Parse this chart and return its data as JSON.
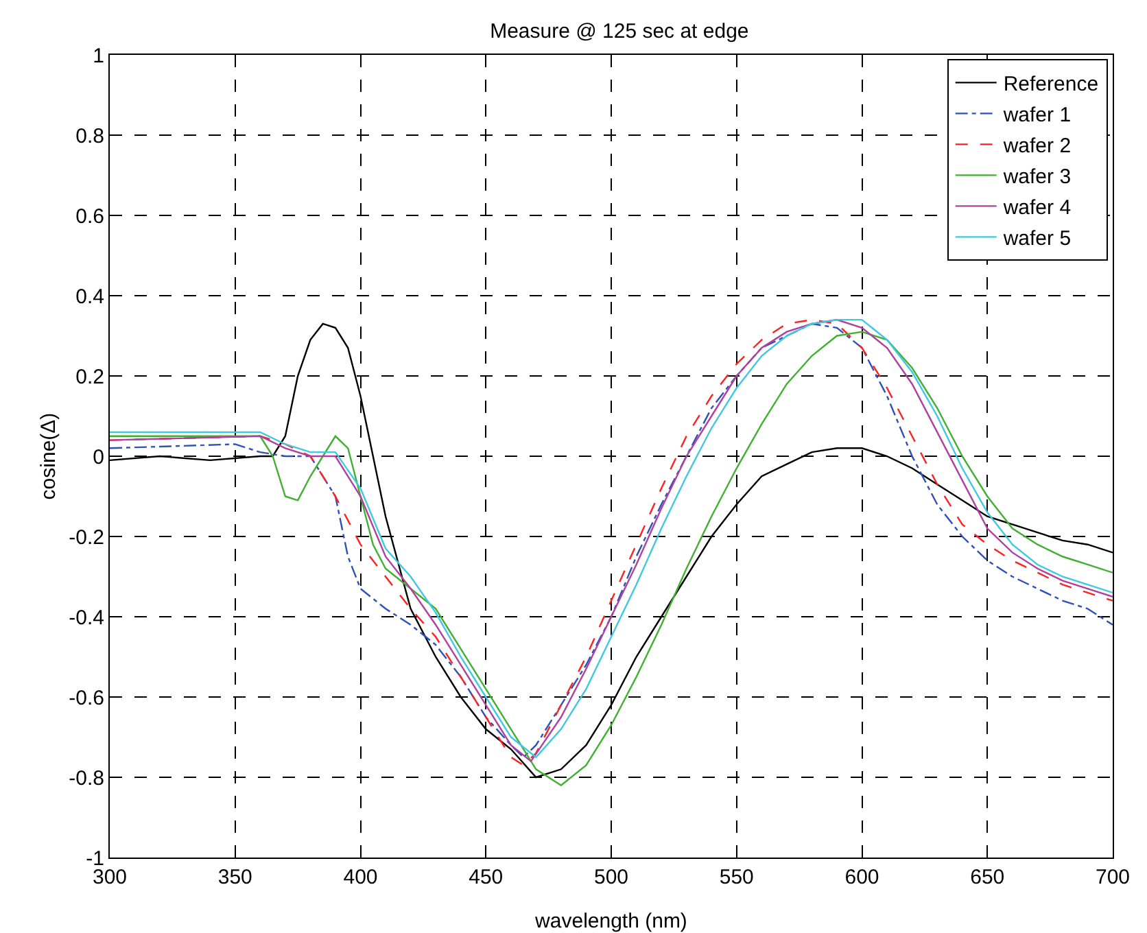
{
  "chart_data": {
    "type": "line",
    "title": "Measure @ 125 sec at edge",
    "xlabel": "wavelength (nm)",
    "ylabel": "cosine(Δ)",
    "xlim": [
      300,
      700
    ],
    "xticks": [
      300,
      350,
      400,
      450,
      500,
      550,
      600,
      650,
      700
    ],
    "ylim": [
      -1,
      1
    ],
    "yticks": [
      -1,
      -0.8,
      -0.6,
      -0.4,
      -0.2,
      0,
      0.2,
      0.4,
      0.6,
      0.8,
      1
    ],
    "grid": true,
    "legend": "top right",
    "marker": "none",
    "series": [
      {
        "name": "Reference",
        "color": "#000000",
        "line_style": "solid",
        "x": [
          300,
          320,
          340,
          360,
          365,
          370,
          375,
          380,
          385,
          390,
          395,
          400,
          405,
          410,
          420,
          430,
          440,
          450,
          460,
          470,
          480,
          490,
          500,
          510,
          520,
          530,
          540,
          550,
          560,
          570,
          580,
          590,
          600,
          610,
          620,
          630,
          640,
          650,
          660,
          670,
          680,
          690,
          700
        ],
        "values": [
          -0.01,
          0,
          -0.01,
          0,
          0,
          0.05,
          0.2,
          0.29,
          0.33,
          0.32,
          0.27,
          0.15,
          0,
          -0.15,
          -0.38,
          -0.5,
          -0.6,
          -0.68,
          -0.73,
          -0.8,
          -0.78,
          -0.72,
          -0.62,
          -0.5,
          -0.4,
          -0.3,
          -0.2,
          -0.12,
          -0.05,
          -0.02,
          0.01,
          0.02,
          0.02,
          0,
          -0.03,
          -0.07,
          -0.11,
          -0.15,
          -0.17,
          -0.19,
          -0.21,
          -0.22,
          -0.24
        ]
      },
      {
        "name": "wafer 1",
        "color": "#3050b8",
        "line_style": "dashdot",
        "x": [
          300,
          350,
          360,
          370,
          380,
          390,
          395,
          400,
          410,
          420,
          430,
          440,
          450,
          460,
          465,
          470,
          480,
          490,
          500,
          510,
          520,
          530,
          540,
          550,
          560,
          570,
          580,
          590,
          600,
          610,
          620,
          630,
          640,
          650,
          660,
          670,
          680,
          690,
          700
        ],
        "values": [
          0.02,
          0.03,
          0.01,
          0,
          0,
          -0.1,
          -0.25,
          -0.33,
          -0.38,
          -0.42,
          -0.47,
          -0.55,
          -0.65,
          -0.72,
          -0.75,
          -0.72,
          -0.62,
          -0.52,
          -0.4,
          -0.25,
          -0.12,
          0,
          0.12,
          0.2,
          0.27,
          0.3,
          0.33,
          0.32,
          0.27,
          0.15,
          0,
          -0.12,
          -0.2,
          -0.26,
          -0.3,
          -0.33,
          -0.36,
          -0.38,
          -0.42
        ]
      },
      {
        "name": "wafer 2",
        "color": "#ff2020",
        "line_style": "dashed",
        "x": [
          300,
          360,
          370,
          380,
          390,
          400,
          410,
          420,
          430,
          440,
          450,
          460,
          465,
          470,
          480,
          490,
          500,
          510,
          520,
          530,
          540,
          550,
          560,
          570,
          580,
          590,
          600,
          610,
          620,
          630,
          640,
          650,
          660,
          670,
          680,
          690,
          700
        ],
        "values": [
          0.04,
          0.05,
          0.03,
          0,
          -0.1,
          -0.22,
          -0.3,
          -0.38,
          -0.45,
          -0.55,
          -0.65,
          -0.75,
          -0.77,
          -0.74,
          -0.62,
          -0.5,
          -0.36,
          -0.22,
          -0.08,
          0.05,
          0.15,
          0.23,
          0.29,
          0.33,
          0.34,
          0.33,
          0.27,
          0.17,
          0.05,
          -0.07,
          -0.17,
          -0.22,
          -0.26,
          -0.29,
          -0.32,
          -0.34,
          -0.36
        ]
      },
      {
        "name": "wafer 3",
        "color": "#40b030",
        "line_style": "solid",
        "x": [
          300,
          360,
          365,
          370,
          375,
          380,
          385,
          390,
          395,
          400,
          405,
          410,
          420,
          430,
          440,
          450,
          460,
          470,
          480,
          490,
          500,
          510,
          520,
          530,
          540,
          550,
          560,
          570,
          580,
          590,
          600,
          610,
          620,
          630,
          640,
          650,
          660,
          670,
          680,
          690,
          700
        ],
        "values": [
          0.05,
          0.05,
          0,
          -0.1,
          -0.11,
          -0.05,
          0,
          0.05,
          0.02,
          -0.1,
          -0.22,
          -0.28,
          -0.33,
          -0.38,
          -0.48,
          -0.58,
          -0.68,
          -0.78,
          -0.82,
          -0.77,
          -0.67,
          -0.55,
          -0.42,
          -0.28,
          -0.15,
          -0.03,
          0.08,
          0.18,
          0.25,
          0.3,
          0.31,
          0.29,
          0.22,
          0.12,
          0,
          -0.1,
          -0.18,
          -0.22,
          -0.25,
          -0.27,
          -0.29
        ]
      },
      {
        "name": "wafer 4",
        "color": "#b040a0",
        "line_style": "solid",
        "x": [
          300,
          360,
          370,
          380,
          390,
          400,
          410,
          420,
          430,
          440,
          450,
          460,
          468,
          480,
          490,
          500,
          510,
          520,
          530,
          540,
          550,
          560,
          570,
          580,
          590,
          600,
          610,
          620,
          630,
          640,
          650,
          660,
          670,
          680,
          690,
          700
        ],
        "values": [
          0.04,
          0.05,
          0.02,
          0,
          0,
          -0.1,
          -0.25,
          -0.33,
          -0.42,
          -0.52,
          -0.62,
          -0.72,
          -0.76,
          -0.65,
          -0.53,
          -0.4,
          -0.27,
          -0.13,
          0,
          0.1,
          0.2,
          0.27,
          0.31,
          0.33,
          0.34,
          0.32,
          0.27,
          0.18,
          0.06,
          -0.06,
          -0.18,
          -0.24,
          -0.28,
          -0.31,
          -0.33,
          -0.35
        ]
      },
      {
        "name": "wafer 5",
        "color": "#40c8e0",
        "line_style": "solid",
        "x": [
          300,
          360,
          370,
          380,
          390,
          400,
          410,
          420,
          430,
          440,
          450,
          460,
          470,
          480,
          490,
          500,
          510,
          520,
          530,
          540,
          550,
          560,
          570,
          580,
          590,
          600,
          610,
          620,
          630,
          640,
          650,
          660,
          670,
          680,
          690,
          700
        ],
        "values": [
          0.06,
          0.06,
          0.03,
          0.01,
          0.01,
          -0.08,
          -0.23,
          -0.3,
          -0.39,
          -0.5,
          -0.6,
          -0.7,
          -0.75,
          -0.68,
          -0.58,
          -0.45,
          -0.32,
          -0.18,
          -0.05,
          0.07,
          0.17,
          0.25,
          0.3,
          0.33,
          0.34,
          0.34,
          0.29,
          0.21,
          0.1,
          -0.03,
          -0.14,
          -0.22,
          -0.27,
          -0.3,
          -0.32,
          -0.34
        ]
      }
    ]
  }
}
